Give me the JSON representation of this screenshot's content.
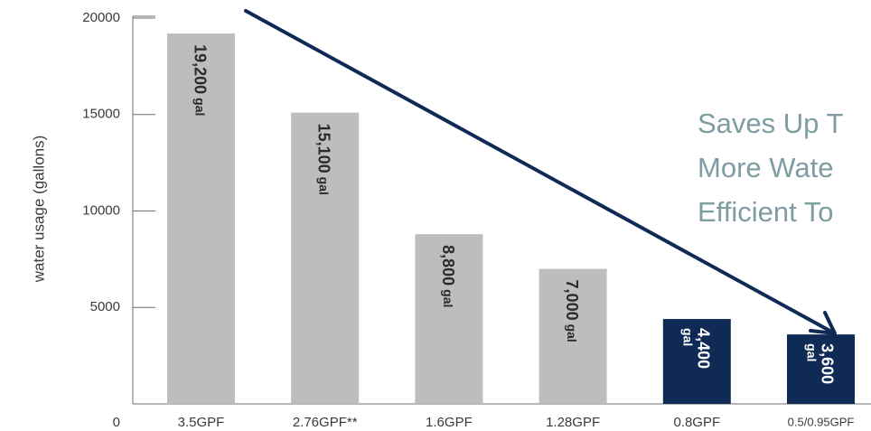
{
  "chart_data": {
    "type": "bar",
    "ylabel": "water usage (gallons)",
    "ylim": [
      0,
      20000
    ],
    "yticks": [
      "0",
      "5000",
      "10000",
      "15000",
      "20000"
    ],
    "categories": [
      "3.5GPF",
      "2.76GPF**",
      "1.6GPF",
      "1.28GPF",
      "0.8GPF",
      "0.5/0.95GPF"
    ],
    "values": [
      19200,
      15100,
      8800,
      7000,
      4400,
      3600
    ],
    "data_labels": [
      {
        "value": "19,200",
        "unit": "gal"
      },
      {
        "value": "15,100",
        "unit": "gal"
      },
      {
        "value": "8,800",
        "unit": "gal"
      },
      {
        "value": "7,000",
        "unit": "gal"
      },
      {
        "value": "4,400",
        "unit": "gal"
      },
      {
        "value": "3,600",
        "unit": "gal"
      }
    ],
    "bar_colors": [
      "#bcbdbf",
      "#bcbdbf",
      "#bcbdbf",
      "#bcbdbf",
      "#0e2a55",
      "#0e2a55"
    ],
    "label_colors": [
      "#2b2b2b",
      "#2b2b2b",
      "#2b2b2b",
      "#2b2b2b",
      "#ffffff",
      "#ffffff"
    ],
    "annotation_lines": [
      "Saves Up T",
      "More Wate",
      "Efficient To"
    ],
    "arrow_color": "#0e2a55",
    "headline_color": "#7e9da2",
    "grid": false,
    "legend": "none"
  }
}
